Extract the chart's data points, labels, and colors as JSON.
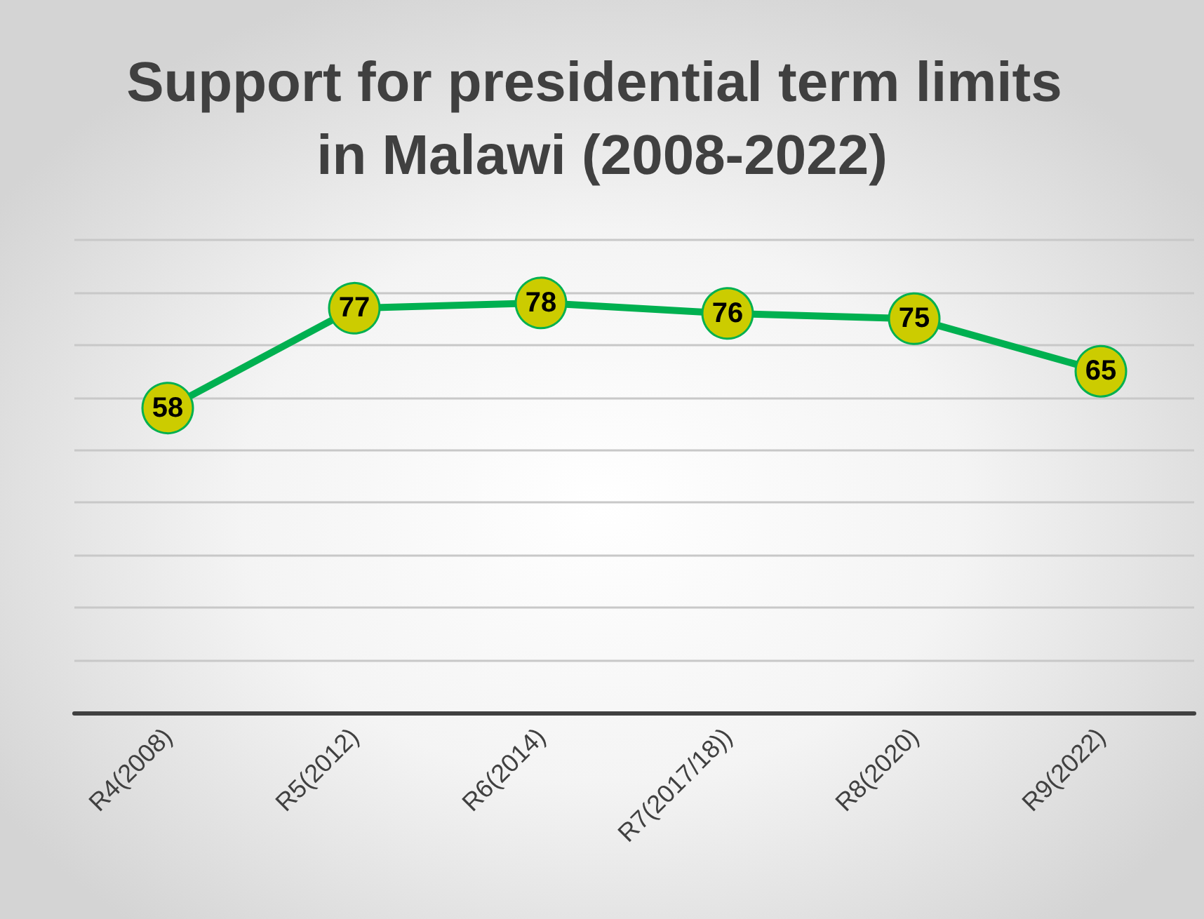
{
  "chart_data": {
    "type": "line",
    "title": "Support for presidential term limits in Malawi (2008-2022)",
    "categories": [
      "R4(2008)",
      "R5(2012)",
      "R6(2014)",
      "R7(2017/18))",
      "R8(2020)",
      "R9(2022)"
    ],
    "series": [
      {
        "color": "#00b050",
        "colors": [
          "#cccc00",
          "#cccc00",
          "#cccc00",
          "#cccc00",
          "#cccc00",
          "#cccc00"
        ],
        "values": [
          58,
          77,
          78,
          76,
          75,
          65
        ]
      }
    ],
    "ylim": [
      0,
      90
    ],
    "yticks": [
      {
        "value": 0,
        "label": null
      },
      {
        "value": 10,
        "label": null
      },
      {
        "value": 20,
        "label": null
      },
      {
        "value": 30,
        "label": null
      },
      {
        "value": 40,
        "label": null
      },
      {
        "value": 50,
        "label": null
      },
      {
        "value": 60,
        "label": null
      },
      {
        "value": 70,
        "label": null
      },
      {
        "value": 80,
        "label": null
      },
      {
        "value": 90,
        "label": null
      }
    ],
    "tick_labels": "x",
    "grid": "y",
    "data_labels": true,
    "marker": "circle",
    "line_style": "solid"
  }
}
